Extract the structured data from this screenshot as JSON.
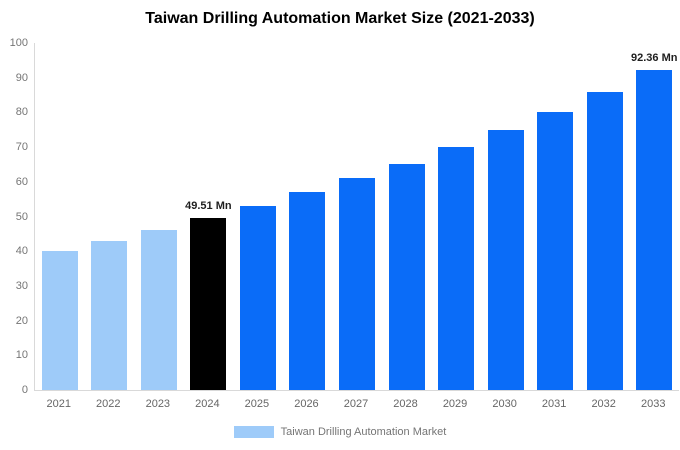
{
  "chart_data": {
    "type": "bar",
    "title": "Taiwan Drilling Automation Market Size (2021-2033)",
    "categories": [
      "2021",
      "2022",
      "2023",
      "2024",
      "2025",
      "2026",
      "2027",
      "2028",
      "2029",
      "2030",
      "2031",
      "2032",
      "2033"
    ],
    "values": [
      40,
      43,
      46,
      49.51,
      53,
      57,
      61,
      65,
      70,
      75,
      80,
      86,
      92.36
    ],
    "bar_colors": [
      "#9ecbf9",
      "#9ecbf9",
      "#9ecbf9",
      "#000000",
      "#0a6cf8",
      "#0a6cf8",
      "#0a6cf8",
      "#0a6cf8",
      "#0a6cf8",
      "#0a6cf8",
      "#0a6cf8",
      "#0a6cf8",
      "#0a6cf8"
    ],
    "value_labels": {
      "2024": "49.51 Mn",
      "2033": "92.36 Mn"
    },
    "xlabel": "",
    "ylabel": "",
    "ylim": [
      0,
      100
    ],
    "ytick_step": 10,
    "grid": false,
    "legend_position": "bottom",
    "legend": [
      {
        "label": "Taiwan Drilling Automation Market",
        "color": "#9ecbf9"
      }
    ],
    "colors": {
      "axis_line": "#d9d9d9",
      "tick_text": "#757575",
      "value_label_text": "#1f1f1f",
      "title_text": "#000000",
      "background": "#ffffff"
    }
  }
}
